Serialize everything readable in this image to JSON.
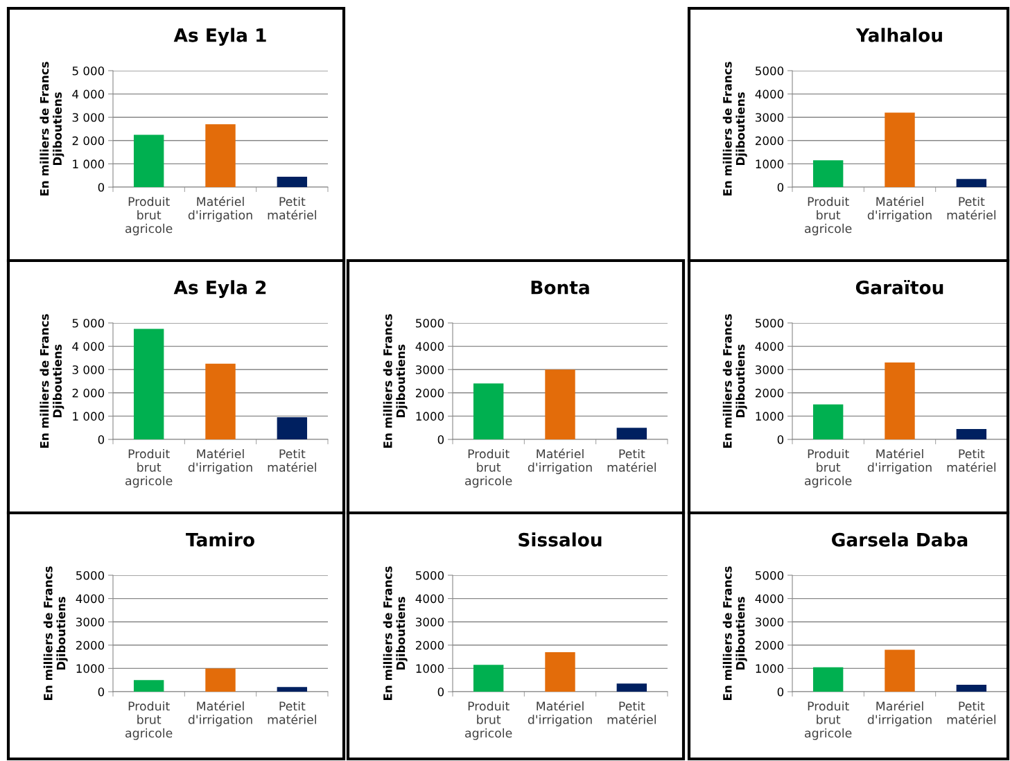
{
  "chart_data": [
    {
      "type": "bar",
      "title": "As Eyla 1",
      "ylabel": "En milliers de Francs Djiboutiens",
      "categories": [
        "Produit brut agricole",
        "Matériel d'irrigation",
        "Petit matériel"
      ],
      "values": [
        2250,
        2700,
        450
      ],
      "colors": [
        "#00b050",
        "#e36c0a",
        "#002060"
      ],
      "ylim": [
        0,
        5000
      ],
      "yticks": [
        0,
        {
          "value": 1000,
          "label": "1 000"
        },
        {
          "value": 2000,
          "label": "2 000"
        },
        {
          "value": 3000,
          "label": "3 000"
        },
        {
          "value": 4000,
          "label": "4 000"
        },
        {
          "value": 5000,
          "label": "5 000"
        }
      ],
      "grid": "y"
    },
    {
      "type": "bar",
      "title": "Yalhalou",
      "ylabel": "En milliers de Francs Djiboutiens",
      "categories": [
        "Produit brut agricole",
        "Matériel d'irrigation",
        "Petit matériel"
      ],
      "values": [
        1150,
        3200,
        350
      ],
      "colors": [
        "#00b050",
        "#e36c0a",
        "#002060"
      ],
      "ylim": [
        0,
        5000
      ],
      "yticks": [
        0,
        1000,
        2000,
        3000,
        4000,
        5000
      ],
      "grid": "y"
    },
    {
      "type": "bar",
      "title": "As Eyla 2",
      "ylabel": "En milliers de Francs Djiboutiens",
      "categories": [
        "Produit brut agricole",
        "Matériel d'irrigation",
        "Petit matériel"
      ],
      "values": [
        4750,
        3250,
        950
      ],
      "colors": [
        "#00b050",
        "#e36c0a",
        "#002060"
      ],
      "ylim": [
        0,
        5000
      ],
      "yticks": [
        0,
        {
          "value": 1000,
          "label": "1 000"
        },
        {
          "value": 2000,
          "label": "2 000"
        },
        {
          "value": 3000,
          "label": "3 000"
        },
        {
          "value": 4000,
          "label": "4 000"
        },
        {
          "value": 5000,
          "label": "5 000"
        }
      ],
      "grid": "y"
    },
    {
      "type": "bar",
      "title": "Bonta",
      "ylabel": "En milliers de Francs Djiboutiens",
      "categories": [
        "Produit brut agricole",
        "Matériel d'irrigation",
        "Petit matériel"
      ],
      "values": [
        2400,
        3000,
        500
      ],
      "colors": [
        "#00b050",
        "#e36c0a",
        "#002060"
      ],
      "ylim": [
        0,
        5000
      ],
      "yticks": [
        0,
        1000,
        2000,
        3000,
        4000,
        5000
      ],
      "grid": "y"
    },
    {
      "type": "bar",
      "title": "Garaïtou",
      "ylabel": "En milliers de Francs Djiboutiens",
      "categories": [
        "Produit brut agricole",
        "Matériel d'irrigation",
        "Petit matériel"
      ],
      "values": [
        1500,
        3300,
        450
      ],
      "colors": [
        "#00b050",
        "#e36c0a",
        "#002060"
      ],
      "ylim": [
        0,
        5000
      ],
      "yticks": [
        0,
        1000,
        2000,
        3000,
        4000,
        5000
      ],
      "grid": "y"
    },
    {
      "type": "bar",
      "title": "Tamiro",
      "ylabel": "En milliers de Francs Djiboutiens",
      "categories": [
        "Produit brut agricole",
        "Matériel d'irrigation",
        "Petit matériel"
      ],
      "values": [
        500,
        1000,
        200
      ],
      "colors": [
        "#00b050",
        "#e36c0a",
        "#002060"
      ],
      "ylim": [
        0,
        5000
      ],
      "yticks": [
        0,
        1000,
        2000,
        3000,
        4000,
        5000
      ],
      "grid": "y"
    },
    {
      "type": "bar",
      "title": "Sissalou",
      "ylabel": "En milliers de Francs Djiboutiens",
      "categories": [
        "Produit brut agricole",
        "Matériel d'irrigation",
        "Petit matériel"
      ],
      "values": [
        1150,
        1700,
        350
      ],
      "colors": [
        "#00b050",
        "#e36c0a",
        "#002060"
      ],
      "ylim": [
        0,
        5000
      ],
      "yticks": [
        0,
        1000,
        2000,
        3000,
        4000,
        5000
      ],
      "grid": "y"
    },
    {
      "type": "bar",
      "title": "Garsela Daba",
      "ylabel": "En milliers de Francs Djiboutiens",
      "categories": [
        "Produit brut agricole",
        "Marériel d'irrigation",
        "Petit matériel"
      ],
      "values": [
        1050,
        1800,
        300
      ],
      "colors": [
        "#00b050",
        "#e36c0a",
        "#002060"
      ],
      "ylim": [
        0,
        5000
      ],
      "yticks": [
        0,
        1000,
        2000,
        3000,
        4000,
        5000
      ],
      "grid": "y"
    }
  ]
}
